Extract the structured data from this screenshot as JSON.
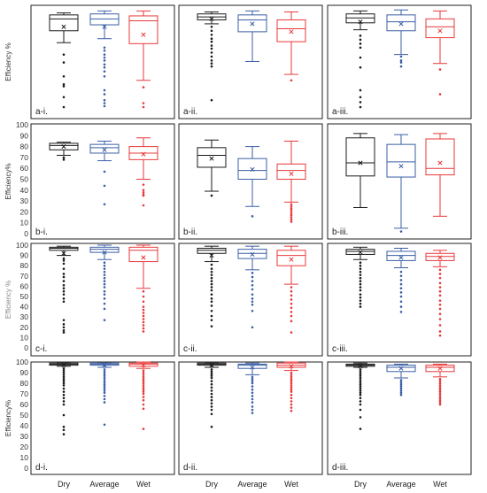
{
  "figure": {
    "categories": [
      "Dry",
      "Average",
      "Wet"
    ],
    "colors": {
      "Dry": "#1a1a1a",
      "Average": "#3a5fa5",
      "Wet": "#e8393a"
    },
    "rows": [
      {
        "ylabel": "Efficiency %",
        "ylabel_style": "dark",
        "ylim": [
          0,
          100
        ],
        "yticks": []
      },
      {
        "ylabel": "Efficiency%",
        "ylabel_style": "dark",
        "ylim": [
          0,
          100
        ],
        "yticks": [
          0,
          10,
          20,
          30,
          40,
          50,
          60,
          70,
          80,
          90,
          100
        ]
      },
      {
        "ylabel": "Efficiency %",
        "ylabel_style": "light",
        "ylim": [
          0,
          100
        ],
        "yticks": [
          0,
          10,
          20,
          30,
          40,
          50,
          60,
          70,
          80,
          90,
          100
        ]
      },
      {
        "ylabel": "Efficiency%",
        "ylabel_style": "dark",
        "ylim": [
          0,
          100
        ],
        "yticks": [
          0,
          10,
          20,
          30,
          40,
          50,
          60,
          70,
          80,
          90,
          100
        ]
      }
    ]
  },
  "chart_data": [
    {
      "type": "box",
      "panel": "a-i.",
      "categories": [
        "Dry",
        "Average",
        "Wet"
      ],
      "ylim": [
        0,
        100
      ],
      "boxes": [
        {
          "category": "Dry",
          "whisker_low": 65,
          "q1": 77,
          "median": 89,
          "q3": 93,
          "whisker_high": 95,
          "mean": 81,
          "outliers": [
            53,
            45,
            31,
            23,
            21,
            10,
            0
          ]
        },
        {
          "category": "Average",
          "whisker_low": 69,
          "q1": 83,
          "median": 89,
          "q3": 94,
          "whisker_high": 97,
          "mean": 81,
          "outliers": [
            60,
            57,
            53,
            50,
            47,
            43,
            40,
            36,
            31,
            17,
            13,
            7,
            4,
            1
          ]
        },
        {
          "category": "Wet",
          "whisker_low": 27,
          "q1": 64,
          "median": 87,
          "q3": 92,
          "whisker_high": 97,
          "mean": 73,
          "outliers": [
            20,
            4,
            0
          ]
        }
      ]
    },
    {
      "type": "box",
      "panel": "a-ii.",
      "categories": [
        "Dry",
        "Average",
        "Wet"
      ],
      "ylim": [
        0,
        100
      ],
      "boxes": [
        {
          "category": "Dry",
          "whisker_low": 84,
          "q1": 88,
          "median": 91,
          "q3": 94,
          "whisker_high": 96,
          "mean": 89,
          "outliers": [
            81,
            77,
            73,
            69,
            66,
            62,
            59,
            55,
            51,
            47,
            44,
            41,
            7
          ]
        },
        {
          "category": "Average",
          "whisker_low": 46,
          "q1": 76,
          "median": 88,
          "q3": 93,
          "whisker_high": 97,
          "mean": 84,
          "outliers": []
        },
        {
          "category": "Wet",
          "whisker_low": 33,
          "q1": 66,
          "median": 79,
          "q3": 88,
          "whisker_high": 96,
          "mean": 76,
          "outliers": [
            27
          ]
        }
      ]
    },
    {
      "type": "box",
      "panel": "a-iii.",
      "categories": [
        "Dry",
        "Average",
        "Wet"
      ],
      "ylim": [
        0,
        100
      ],
      "boxes": [
        {
          "category": "Dry",
          "whisker_low": 78,
          "q1": 85,
          "median": 90,
          "q3": 94,
          "whisker_high": 97,
          "mean": 86,
          "outliers": [
            72,
            68,
            64,
            60,
            50,
            40,
            17,
            10,
            5,
            0
          ]
        },
        {
          "category": "Average",
          "whisker_low": 53,
          "q1": 77,
          "median": 86,
          "q3": 93,
          "whisker_high": 98,
          "mean": 84,
          "outliers": [
            51,
            47,
            45,
            41
          ]
        },
        {
          "category": "Wet",
          "whisker_low": 44,
          "q1": 70,
          "median": 81,
          "q3": 89,
          "whisker_high": 97,
          "mean": 77,
          "outliers": [
            38,
            13
          ]
        }
      ]
    },
    {
      "type": "box",
      "panel": "b-i.",
      "categories": [
        "Dry",
        "Average",
        "Wet"
      ],
      "ylim": [
        0,
        100
      ],
      "boxes": [
        {
          "category": "Dry",
          "whisker_low": 72,
          "q1": 77,
          "median": 81,
          "q3": 83,
          "whisker_high": 84,
          "mean": 80,
          "outliers": [
            70,
            68
          ]
        },
        {
          "category": "Average",
          "whisker_low": 67,
          "q1": 74,
          "median": 79,
          "q3": 82,
          "whisker_high": 85,
          "mean": 77,
          "outliers": [
            57,
            44,
            27
          ]
        },
        {
          "category": "Wet",
          "whisker_low": 50,
          "q1": 68,
          "median": 74,
          "q3": 80,
          "whisker_high": 88,
          "mean": 73,
          "outliers": [
            45,
            40,
            38,
            36,
            35,
            26
          ]
        }
      ]
    },
    {
      "type": "box",
      "panel": "b-ii.",
      "categories": [
        "Dry",
        "Average",
        "Wet"
      ],
      "ylim": [
        0,
        100
      ],
      "boxes": [
        {
          "category": "Dry",
          "whisker_low": 39,
          "q1": 61,
          "median": 72,
          "q3": 79,
          "whisker_high": 86,
          "mean": 69,
          "outliers": [
            35
          ]
        },
        {
          "category": "Average",
          "whisker_low": 25,
          "q1": 50,
          "median": 58,
          "q3": 69,
          "whisker_high": 80,
          "mean": 59,
          "outliers": [
            16
          ]
        },
        {
          "category": "Wet",
          "whisker_low": 29,
          "q1": 50,
          "median": 58,
          "q3": 64,
          "whisker_high": 85,
          "mean": 55,
          "outliers": [
            27,
            25,
            23,
            21,
            19,
            17,
            15,
            13,
            11
          ]
        }
      ]
    },
    {
      "type": "box",
      "panel": "b-iii.",
      "categories": [
        "Dry",
        "Average",
        "Wet"
      ],
      "ylim": [
        0,
        100
      ],
      "boxes": [
        {
          "category": "Dry",
          "whisker_low": 24,
          "q1": 53,
          "median": 65,
          "q3": 88,
          "whisker_high": 92,
          "mean": 65,
          "outliers": []
        },
        {
          "category": "Average",
          "whisker_low": 5,
          "q1": 52,
          "median": 66,
          "q3": 82,
          "whisker_high": 91,
          "mean": 62,
          "outliers": [
            2
          ]
        },
        {
          "category": "Wet",
          "whisker_low": 16,
          "q1": 54,
          "median": 60,
          "q3": 87,
          "whisker_high": 92,
          "mean": 65,
          "outliers": []
        }
      ]
    },
    {
      "type": "box",
      "panel": "c-i.",
      "categories": [
        "Dry",
        "Average",
        "Wet"
      ],
      "ylim": [
        0,
        100
      ],
      "boxes": [
        {
          "category": "Dry",
          "whisker_low": 90,
          "q1": 95,
          "median": 97,
          "q3": 98,
          "whisker_high": 99,
          "mean": 92,
          "outliers": [
            87,
            85,
            82,
            77,
            72,
            69,
            65,
            61,
            58,
            55,
            52,
            48,
            45,
            27,
            23,
            20,
            17,
            15
          ]
        },
        {
          "category": "Average",
          "whisker_low": 86,
          "q1": 93,
          "median": 96,
          "q3": 98,
          "whisker_high": 100,
          "mean": 93,
          "outliers": [
            83,
            80,
            77,
            74,
            71,
            68,
            65,
            62,
            59,
            55,
            52,
            48,
            43,
            38,
            27
          ]
        },
        {
          "category": "Wet",
          "whisker_low": 58,
          "q1": 84,
          "median": 95,
          "q3": 98,
          "whisker_high": 100,
          "mean": 88,
          "outliers": [
            55,
            50,
            45,
            40,
            37,
            34,
            31,
            28,
            25,
            22,
            19,
            16
          ]
        }
      ]
    },
    {
      "type": "box",
      "panel": "c-ii.",
      "categories": [
        "Dry",
        "Average",
        "Wet"
      ],
      "ylim": [
        0,
        100
      ],
      "boxes": [
        {
          "category": "Dry",
          "whisker_low": 84,
          "q1": 92,
          "median": 95,
          "q3": 97,
          "whisker_high": 99,
          "mean": 90,
          "outliers": [
            81,
            77,
            74,
            71,
            68,
            65,
            62,
            59,
            56,
            52,
            48,
            45,
            41,
            36,
            31,
            27,
            21
          ]
        },
        {
          "category": "Average",
          "whisker_low": 76,
          "q1": 87,
          "median": 92,
          "q3": 96,
          "whisker_high": 99,
          "mean": 91,
          "outliers": [
            73,
            69,
            65,
            61,
            57,
            52,
            48,
            45,
            42,
            36,
            20
          ]
        },
        {
          "category": "Wet",
          "whisker_low": 62,
          "q1": 80,
          "median": 90,
          "q3": 95,
          "whisker_high": 99,
          "mean": 86,
          "outliers": [
            59,
            55,
            51,
            47,
            43,
            39,
            35,
            31,
            26,
            15
          ]
        }
      ]
    },
    {
      "type": "box",
      "panel": "c-iii.",
      "categories": [
        "Dry",
        "Average",
        "Wet"
      ],
      "ylim": [
        0,
        100
      ],
      "boxes": [
        {
          "category": "Dry",
          "whisker_low": 86,
          "q1": 91,
          "median": 94,
          "q3": 96,
          "whisker_high": 98,
          "mean": 93,
          "outliers": [
            83,
            80,
            77,
            74,
            71,
            68,
            65,
            62,
            59,
            56,
            52,
            49,
            46,
            43,
            40
          ]
        },
        {
          "category": "Average",
          "whisker_low": 78,
          "q1": 85,
          "median": 90,
          "q3": 94,
          "whisker_high": 97,
          "mean": 88,
          "outliers": [
            74,
            70,
            66,
            62,
            58,
            54,
            50,
            45,
            40,
            35
          ]
        },
        {
          "category": "Wet",
          "whisker_low": 79,
          "q1": 85,
          "median": 89,
          "q3": 92,
          "whisker_high": 95,
          "mean": 88,
          "outliers": [
            76,
            72,
            68,
            63,
            59,
            55,
            51,
            46,
            42,
            38,
            33,
            28,
            22,
            16,
            12
          ]
        }
      ]
    },
    {
      "type": "box",
      "panel": "d-i.",
      "categories": [
        "Dry",
        "Average",
        "Wet"
      ],
      "ylim": [
        0,
        100
      ],
      "boxes": [
        {
          "category": "Dry",
          "whisker_low": 96,
          "q1": 97,
          "median": 98,
          "q3": 99,
          "whisker_high": 99,
          "mean": 97,
          "outliers": [
            94,
            92,
            90,
            88,
            86,
            84,
            82,
            80,
            78,
            75,
            72,
            69,
            66,
            63,
            60,
            50,
            39,
            36,
            32
          ]
        },
        {
          "category": "Average",
          "whisker_low": 95,
          "q1": 97,
          "median": 98,
          "q3": 99,
          "whisker_high": 99,
          "mean": 97,
          "outliers": [
            93,
            91,
            89,
            87,
            85,
            83,
            81,
            79,
            77,
            75,
            73,
            71,
            68,
            65,
            62,
            41
          ]
        },
        {
          "category": "Wet",
          "whisker_low": 94,
          "q1": 96,
          "median": 98,
          "q3": 99,
          "whisker_high": 100,
          "mean": 97,
          "outliers": [
            92,
            90,
            88,
            86,
            84,
            82,
            80,
            78,
            76,
            74,
            72,
            70,
            67,
            64,
            60,
            56,
            37
          ]
        }
      ]
    },
    {
      "type": "box",
      "panel": "d-ii.",
      "categories": [
        "Dry",
        "Average",
        "Wet"
      ],
      "ylim": [
        0,
        100
      ],
      "boxes": [
        {
          "category": "Dry",
          "whisker_low": 95,
          "q1": 97,
          "median": 98,
          "q3": 99,
          "whisker_high": 99,
          "mean": 97,
          "outliers": [
            93,
            91,
            89,
            87,
            85,
            82,
            79,
            76,
            73,
            70,
            67,
            64,
            61,
            58,
            55,
            51,
            39
          ]
        },
        {
          "category": "Average",
          "whisker_low": 88,
          "q1": 94,
          "median": 97,
          "q3": 98,
          "whisker_high": 99,
          "mean": 95,
          "outliers": [
            86,
            84,
            82,
            80,
            77,
            74,
            71,
            68,
            65,
            62,
            58,
            55,
            52
          ]
        },
        {
          "category": "Wet",
          "whisker_low": 92,
          "q1": 95,
          "median": 97,
          "q3": 99,
          "whisker_high": 100,
          "mean": 96,
          "outliers": [
            90,
            88,
            86,
            84,
            82,
            80,
            78,
            76,
            74,
            72,
            69,
            66,
            63,
            60,
            57,
            54
          ]
        }
      ]
    },
    {
      "type": "box",
      "panel": "d-iii.",
      "categories": [
        "Dry",
        "Average",
        "Wet"
      ],
      "ylim": [
        0,
        100
      ],
      "boxes": [
        {
          "category": "Dry",
          "whisker_low": 95,
          "q1": 96,
          "median": 97,
          "q3": 98,
          "whisker_high": 99,
          "mean": 96,
          "outliers": [
            93,
            91,
            89,
            87,
            85,
            83,
            81,
            79,
            77,
            75,
            73,
            71,
            69,
            66,
            63,
            60,
            55,
            48,
            37
          ]
        },
        {
          "category": "Average",
          "whisker_low": 85,
          "q1": 91,
          "median": 95,
          "q3": 97,
          "whisker_high": 98,
          "mean": 94,
          "outliers": [
            83,
            81,
            79,
            77,
            75,
            73,
            71,
            69
          ]
        },
        {
          "category": "Wet",
          "whisker_low": 86,
          "q1": 91,
          "median": 95,
          "q3": 97,
          "whisker_high": 98,
          "mean": 94,
          "outliers": [
            84,
            82,
            80,
            78,
            76,
            74,
            72,
            70,
            68,
            66,
            64,
            62,
            60
          ]
        }
      ]
    }
  ]
}
